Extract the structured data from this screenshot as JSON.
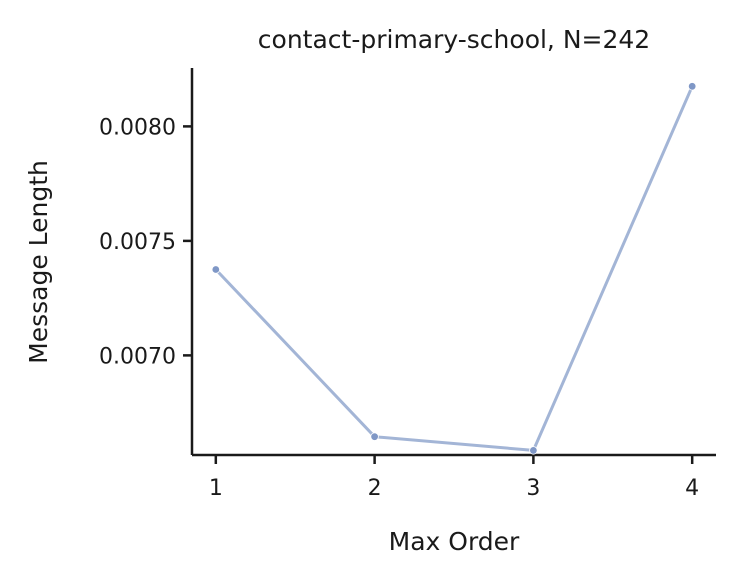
{
  "chart_data": {
    "type": "line",
    "title": "contact-primary-school, N=242",
    "xlabel": "Max Order",
    "ylabel": "Message Length",
    "x": [
      1,
      2,
      3,
      4
    ],
    "x_ticks": [
      1,
      2,
      3,
      4
    ],
    "x_tick_labels": [
      "1",
      "2",
      "3",
      "4"
    ],
    "xlim": [
      0.85,
      4.15
    ],
    "y_ticks": [
      0.007,
      0.0075,
      0.008
    ],
    "y_tick_labels": [
      "0.0070",
      "0.0075",
      "0.0080"
    ],
    "ylim": [
      0.006565,
      0.008255
    ],
    "grid": false,
    "series": [
      {
        "values": [
          0.007375,
          0.006645,
          0.006585,
          0.008175
        ],
        "color": "#a3b5d6",
        "marker_color": "#7f97c6"
      }
    ]
  }
}
